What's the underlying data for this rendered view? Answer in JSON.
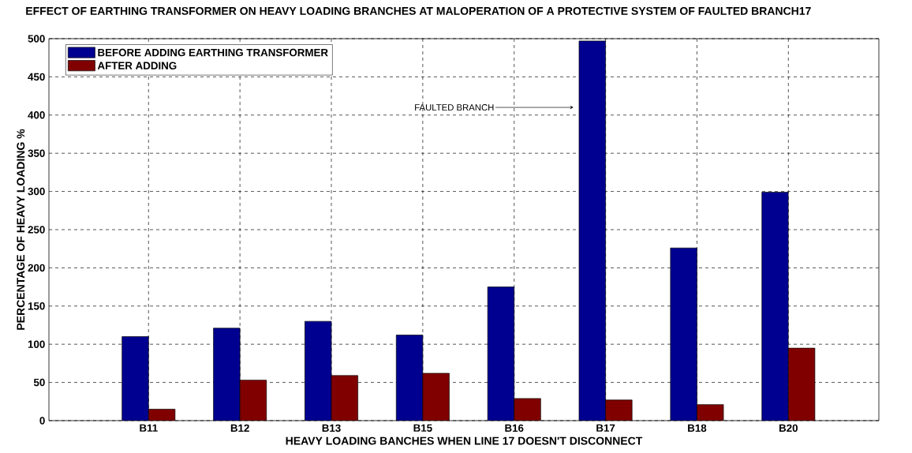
{
  "chart_data": {
    "type": "bar",
    "title": "EFFECT OF EARTHING TRANSFORMER ON HEAVY LOADING BRANCHES AT MALOPERATION OF A PROTECTIVE SYSTEM OF FAULTED BRANCH17",
    "xlabel": "HEAVY LOADING BANCHES WHEN LINE 17 DOESN'T DISCONNECT",
    "ylabel": "PERCENTAGE OF HEAVY LOADING %",
    "categories": [
      "B11",
      "B12",
      "B13",
      "B15",
      "B16",
      "B17",
      "B18",
      "B20"
    ],
    "series": [
      {
        "name": "BEFORE ADDING EARTHING TRANSFORMER",
        "color": "#000090",
        "values": [
          110,
          121,
          130,
          112,
          175,
          497,
          226,
          299
        ]
      },
      {
        "name": "AFTER ADDING",
        "color": "#800000",
        "values": [
          15,
          53,
          59,
          62,
          29,
          27,
          21,
          95
        ]
      }
    ],
    "ylim": [
      0,
      500
    ],
    "yticks": [
      0,
      50,
      100,
      150,
      200,
      250,
      300,
      350,
      400,
      450,
      500
    ],
    "grid": true,
    "legend": "top left",
    "annotations": [
      "FAULTED BRANCH"
    ]
  }
}
